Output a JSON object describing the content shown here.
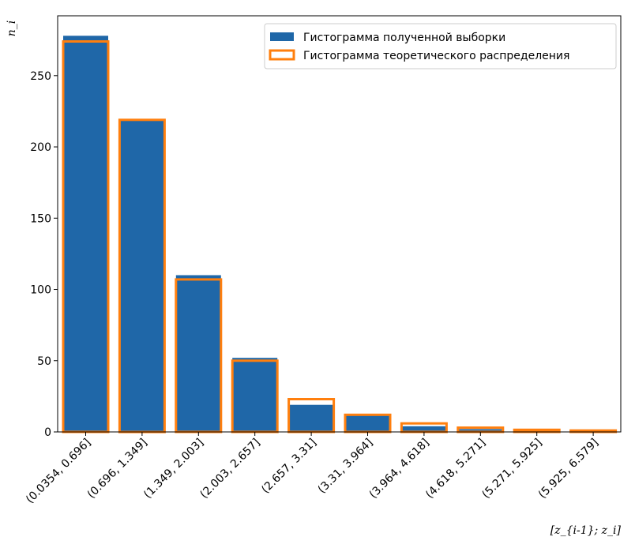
{
  "chart_data": {
    "type": "bar",
    "categories": [
      "(0.0354, 0.696]",
      "(0.696, 1.349]",
      "(1.349, 2.003]",
      "(2.003, 2.657]",
      "(2.657, 3.31]",
      "(3.31, 3.964]",
      "(3.964, 4.618]",
      "(4.618, 5.271]",
      "(5.271, 5.925]",
      "(5.925, 6.579]"
    ],
    "series": [
      {
        "name": "Гистограмма полученной выборки",
        "style": "filled",
        "color": "#1f67a8",
        "values": [
          278,
          219,
          110,
          52,
          19,
          12,
          4,
          2,
          1,
          0.5
        ]
      },
      {
        "name": "Гистограмма теоретического распределения",
        "style": "outline",
        "color": "#ff7f0e",
        "values": [
          274,
          219,
          107,
          50,
          23,
          12,
          6,
          3,
          1.5,
          1
        ]
      }
    ],
    "xlabel": "[z_{i-1}; z_i]",
    "ylabel": "n_i",
    "ylim": [
      0,
      292
    ],
    "yticks": [
      0,
      50,
      100,
      150,
      200,
      250
    ],
    "grid": false,
    "legend_position": "top-right"
  }
}
